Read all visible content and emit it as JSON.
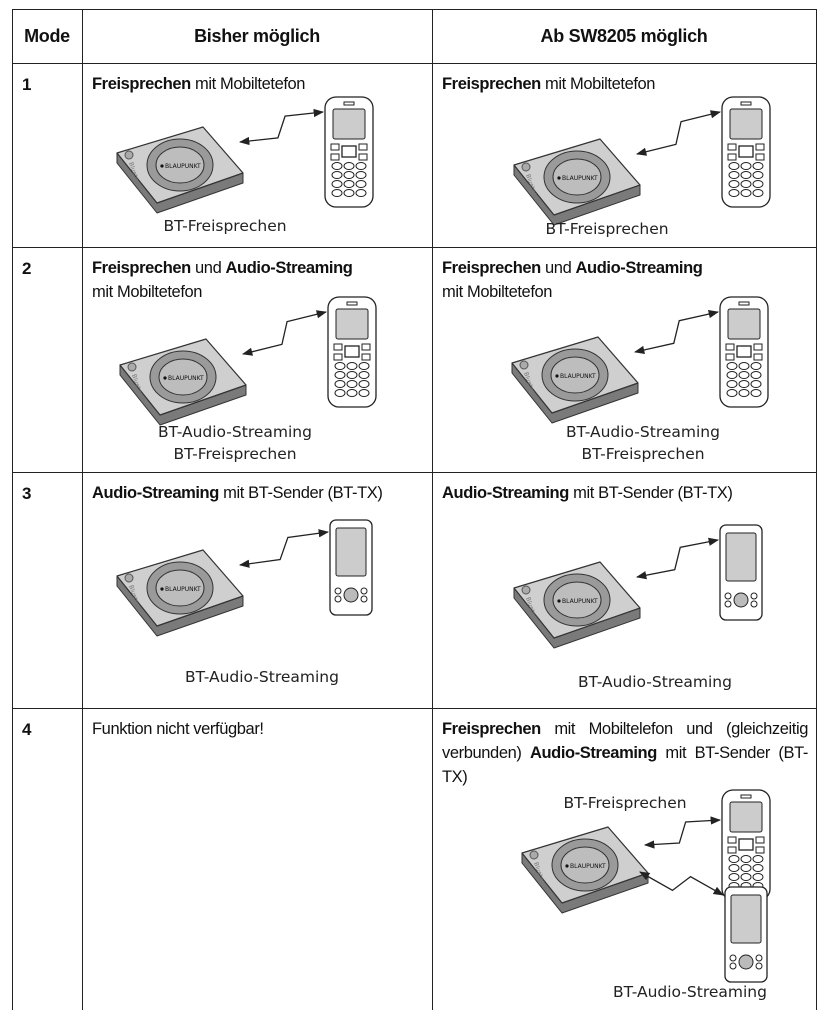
{
  "header": {
    "mode": "Mode",
    "before": "Bisher möglich",
    "after": "Ab SW8205 möglich"
  },
  "device_label": "BLAUPUNKT",
  "device_side_label": "Bluetooth",
  "rows": [
    {
      "mode": "1",
      "before": {
        "text": [
          {
            "text": "Freisprechen",
            "bold": true
          },
          {
            "text": " mit Mobiltetefon"
          }
        ],
        "captions": [
          "BT-Freisprechen"
        ]
      },
      "after": {
        "text": [
          {
            "text": "Freisprechen",
            "bold": true
          },
          {
            "text": " mit Mobiltetefon"
          }
        ],
        "captions": [
          "BT-Freisprechen"
        ]
      }
    },
    {
      "mode": "2",
      "before": {
        "text": [
          {
            "text": "Freisprechen",
            "bold": true
          },
          {
            "text": " und "
          },
          {
            "text": "Audio-Streaming",
            "bold": true
          },
          {
            "text": " mit Mobiltetefon",
            "newline": true
          }
        ],
        "captions": [
          "BT-Audio-Streaming",
          "BT-Freisprechen"
        ]
      },
      "after": {
        "text": [
          {
            "text": "Freisprechen",
            "bold": true
          },
          {
            "text": " und "
          },
          {
            "text": "Audio-Streaming",
            "bold": true
          },
          {
            "text": " mit Mobiltetefon",
            "newline": true
          }
        ],
        "captions": [
          "BT-Audio-Streaming",
          "BT-Freisprechen"
        ]
      }
    },
    {
      "mode": "3",
      "before": {
        "text": [
          {
            "text": "Audio-Streaming",
            "bold": true
          },
          {
            "text": " mit BT-Sender (BT-TX)"
          }
        ],
        "captions": [
          "BT-Audio-Streaming"
        ]
      },
      "after": {
        "text": [
          {
            "text": "Audio-Streaming",
            "bold": true
          },
          {
            "text": " mit BT-Sender (BT-TX)"
          }
        ],
        "captions": [
          "BT-Audio-Streaming"
        ]
      }
    },
    {
      "mode": "4",
      "before": {
        "text": [
          {
            "text": "Funktion nicht verfügbar!"
          }
        ],
        "captions": []
      },
      "after": {
        "text": [
          {
            "text": "Freisprechen",
            "bold": true
          },
          {
            "text": " mit Mobiltelefon und (gleichzeitig verbunden) "
          },
          {
            "text": "Audio-Streaming",
            "bold": true
          },
          {
            "text": " mit BT-Sender (BT-TX)"
          }
        ],
        "captions": [
          "BT-Freisprechen",
          "BT-Audio-Streaming"
        ]
      }
    }
  ]
}
